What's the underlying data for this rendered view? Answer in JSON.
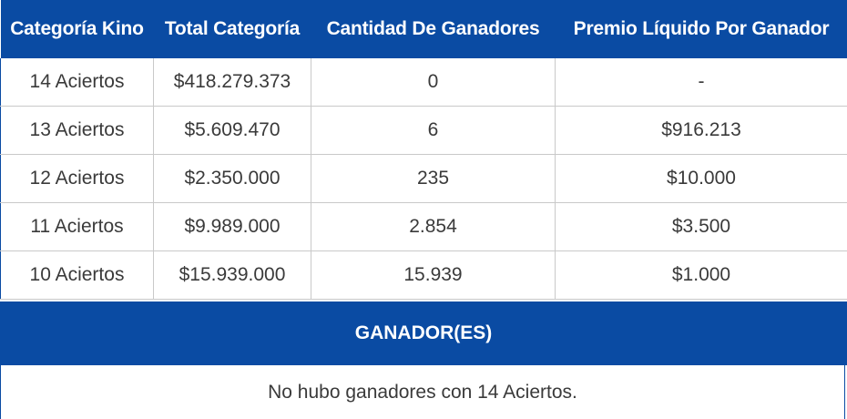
{
  "table": {
    "headers": [
      "Categoría Kino",
      "Total Categoría",
      "Cantidad De Ganadores",
      "Premio Líquido Por Ganador"
    ],
    "rows": [
      [
        "14 Aciertos",
        "$418.279.373",
        "0",
        "-"
      ],
      [
        "13 Aciertos",
        "$5.609.470",
        "6",
        "$916.213"
      ],
      [
        "12 Aciertos",
        "$2.350.000",
        "235",
        "$10.000"
      ],
      [
        "11 Aciertos",
        "$9.989.000",
        "2.854",
        "$3.500"
      ],
      [
        "10 Aciertos",
        "$15.939.000",
        "15.939",
        "$1.000"
      ]
    ]
  },
  "winners": {
    "title": "GANADOR(ES)",
    "message": "No hubo ganadores con 14 Aciertos."
  },
  "colors": {
    "header_bg": "#0a4ba3",
    "header_text": "#ffffff",
    "cell_text": "#3a3a3a",
    "grid": "#c9c9c9"
  }
}
